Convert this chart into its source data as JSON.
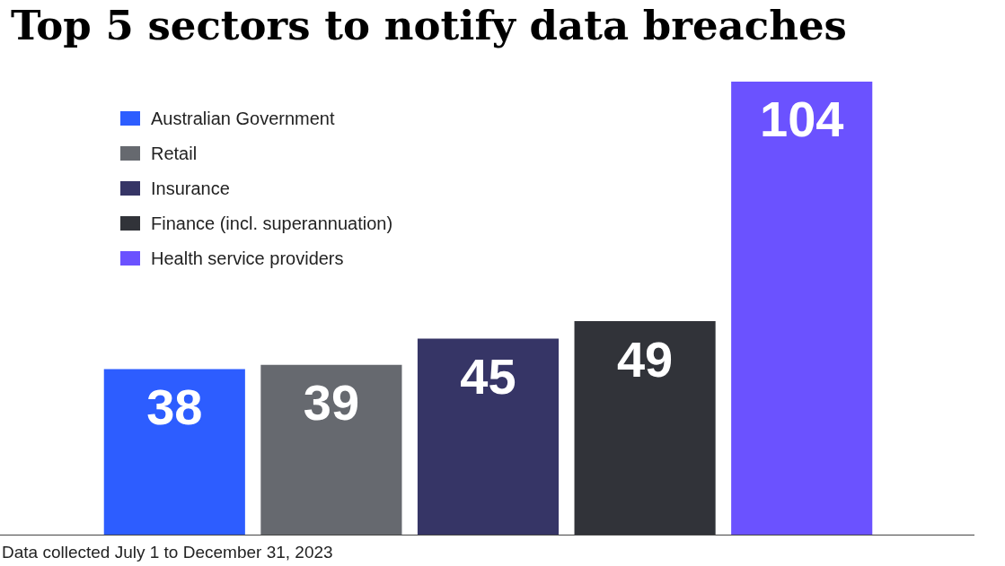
{
  "chart_data": {
    "type": "bar",
    "title": "Top 5 sectors to notify data breaches",
    "categories": [
      null,
      null,
      null,
      null,
      null
    ],
    "series": [
      {
        "name": "Australian Government",
        "color": "#2d5dff",
        "values": [
          38,
          null,
          null,
          null,
          null
        ]
      },
      {
        "name": "Retail",
        "color": "#66696f",
        "values": [
          null,
          39,
          null,
          null,
          null
        ]
      },
      {
        "name": "Insurance",
        "color": "#363566",
        "values": [
          null,
          null,
          45,
          null,
          null
        ]
      },
      {
        "name": "Finance (incl. superannuation)",
        "color": "#313339",
        "values": [
          null,
          null,
          null,
          49,
          null
        ]
      },
      {
        "name": "Health service providers",
        "color": "#6b52ff",
        "values": [
          null,
          null,
          null,
          null,
          104
        ]
      }
    ],
    "stacked": true,
    "ylim": [
      0,
      104
    ],
    "data_labels": true,
    "legend": "top left",
    "tick_labels": false,
    "annotations": [
      "Data collected July 1 to December 31, 2023"
    ]
  }
}
